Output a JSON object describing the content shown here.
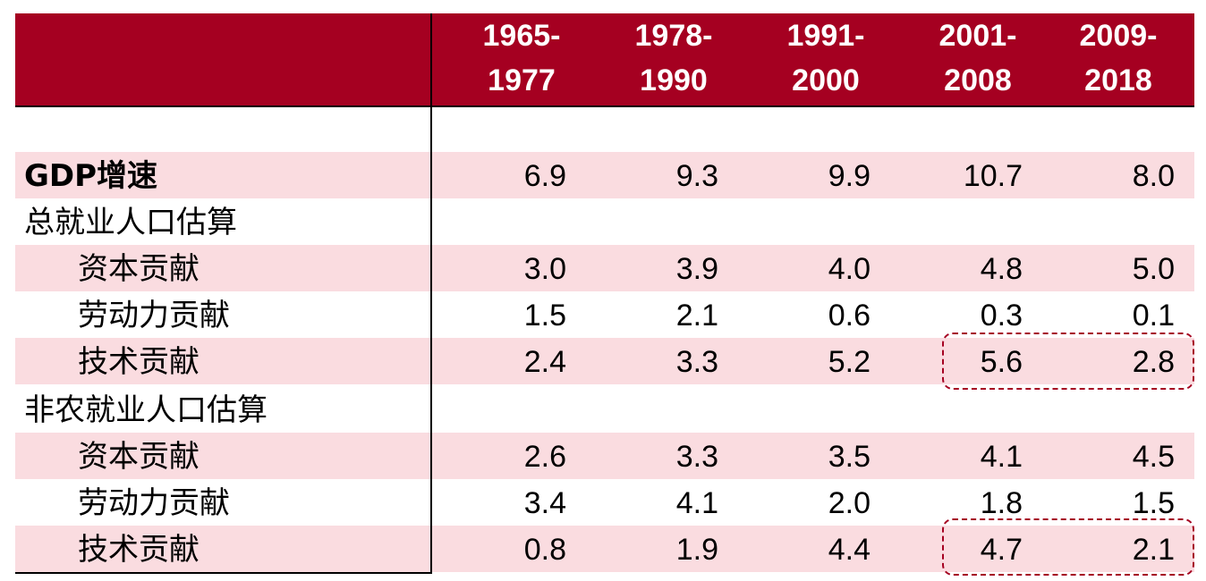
{
  "header": {
    "periods": [
      {
        "line1": "1965-",
        "line2": "1977"
      },
      {
        "line1": "1978-",
        "line2": "1990"
      },
      {
        "line1": "1991-",
        "line2": "2000"
      },
      {
        "line1": "2001-",
        "line2": "2008"
      },
      {
        "line1": "2009-",
        "line2": "2018"
      }
    ]
  },
  "rows": {
    "gdp": {
      "label": "GDP增速",
      "values": [
        "6.9",
        "9.3",
        "9.9",
        "10.7",
        "8.0"
      ]
    },
    "total_section": {
      "label": "总就业人口估算"
    },
    "total_capital": {
      "label": "资本贡献",
      "values": [
        "3.0",
        "3.9",
        "4.0",
        "4.8",
        "5.0"
      ]
    },
    "total_labor": {
      "label": "劳动力贡献",
      "values": [
        "1.5",
        "2.1",
        "0.6",
        "0.3",
        "0.1"
      ]
    },
    "total_tech": {
      "label": "技术贡献",
      "values": [
        "2.4",
        "3.3",
        "5.2",
        "5.6",
        "2.8"
      ]
    },
    "nonfarm_section": {
      "label": "非农就业人口估算"
    },
    "nonfarm_capital": {
      "label": "资本贡献",
      "values": [
        "2.6",
        "3.3",
        "3.5",
        "4.1",
        "4.5"
      ]
    },
    "nonfarm_labor": {
      "label": "劳动力贡献",
      "values": [
        "3.4",
        "4.1",
        "2.0",
        "1.8",
        "1.5"
      ]
    },
    "nonfarm_tech": {
      "label": "技术贡献",
      "values": [
        "0.8",
        "1.9",
        "4.4",
        "4.7",
        "2.1"
      ]
    }
  },
  "colors": {
    "header_bg": "#a50021",
    "row_shade": "#fadce0",
    "highlight_border": "#a50021"
  }
}
